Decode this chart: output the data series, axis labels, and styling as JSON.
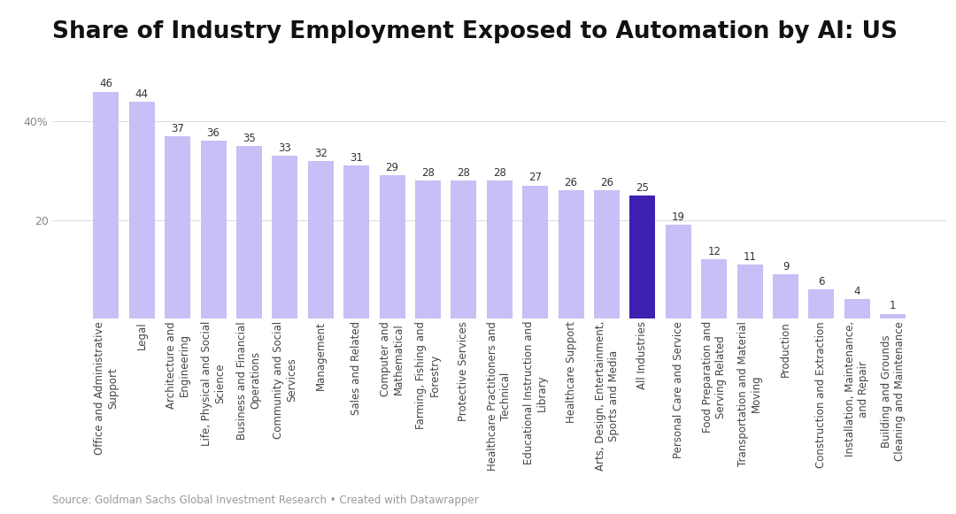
{
  "title": "Share of Industry Employment Exposed to Automation by AI: US",
  "categories": [
    "Office and Administrative\nSupport",
    "Legal",
    "Architecture and\nEngineering",
    "Life, Physical and Social\nScience",
    "Business and Financial\nOperations",
    "Community and Social\nServices",
    "Management",
    "Sales and Related",
    "Computer and\nMathematical",
    "Farming, Fishing and\nForestry",
    "Protective Services",
    "Healthcare Practitioners and\nTechnical",
    "Educational Instruction and\nLibrary",
    "Healthcare Support",
    "Arts, Design, Entertainment,\nSports and Media",
    "All Industries",
    "Personal Care and Service",
    "Food Preparation and\nServing Related",
    "Transportation and Material\nMoving",
    "Production",
    "Construction and Extraction",
    "Installation, Maintenance,\nand Repair",
    "Building and Grounds\nCleaning and Maintenance"
  ],
  "values": [
    46,
    44,
    37,
    36,
    35,
    33,
    32,
    31,
    29,
    28,
    28,
    28,
    27,
    26,
    26,
    25,
    19,
    12,
    11,
    9,
    6,
    4,
    1
  ],
  "bar_colors": [
    "#c9bef5",
    "#c9bef5",
    "#c9bef5",
    "#c9bef5",
    "#c9bef5",
    "#c9bef5",
    "#c9bef5",
    "#c9bef5",
    "#c9bef5",
    "#c9bef5",
    "#c9bef5",
    "#c9bef5",
    "#c9bef5",
    "#c9bef5",
    "#c9bef5",
    "#3d20b0",
    "#c9bef5",
    "#c9bef5",
    "#c9bef5",
    "#c9bef5",
    "#c9bef5",
    "#c9bef5",
    "#c9bef5"
  ],
  "ylim": [
    0,
    50
  ],
  "yticks": [
    20,
    40
  ],
  "ytick_labels": [
    "20",
    "40%"
  ],
  "source": "Source: Goldman Sachs Global Investment Research • Created with Datawrapper",
  "background_color": "#ffffff",
  "grid_color": "#dddddd",
  "title_fontsize": 19,
  "label_fontsize": 8.5,
  "value_fontsize": 8.5,
  "tick_fontsize": 9,
  "source_fontsize": 8.5
}
